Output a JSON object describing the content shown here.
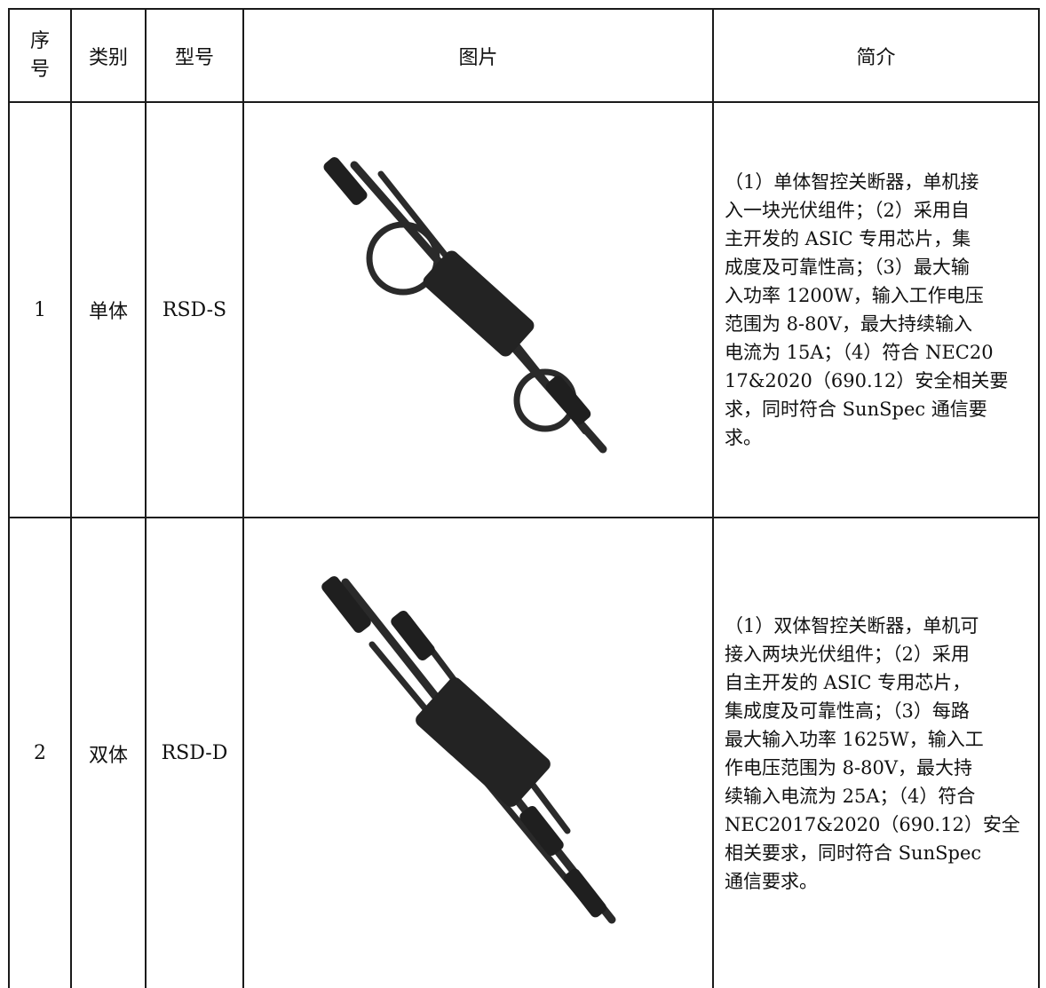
{
  "table": {
    "header": [
      "序号",
      "类别",
      "型号",
      "图片",
      "简介"
    ],
    "rows": [
      [
        "1",
        "单体",
        "RSD-S",
        [
          "（1）单体智控关断器，单机接",
          "入一块光伏组件；（2）采用自",
          "主开发的 ASIC 专用芯片，集",
          "成度及可靠性高；（3）最大输",
          "入功率 1200W，输入工作电压",
          "范围为 8-80V，最大持续输入",
          "电流为 15A；（4）符合 NEC20",
          "17&2020（690.12）安全相关要",
          "求，同时符合 SunSpec 通信要",
          "求。"
        ]
      ],
      [
        "2",
        "双体",
        "RSD-D",
        [
          "（1）双体智控关断器，单机可",
          "接入两块光伏组件；（2）采用",
          "自主开发的 ASIC 专用芯片，",
          "集成度及可靠性高；（3）每路",
          "最大输入功率 1625W，输入工",
          "作电压范围为 8-80V，最大持",
          "续输入电流为 25A；（4）符合",
          "NEC2017&2020（690.12）安全",
          "相关要求，同时符合 SunSpec",
          "通信要求。"
        ]
      ]
    ]
  }
}
